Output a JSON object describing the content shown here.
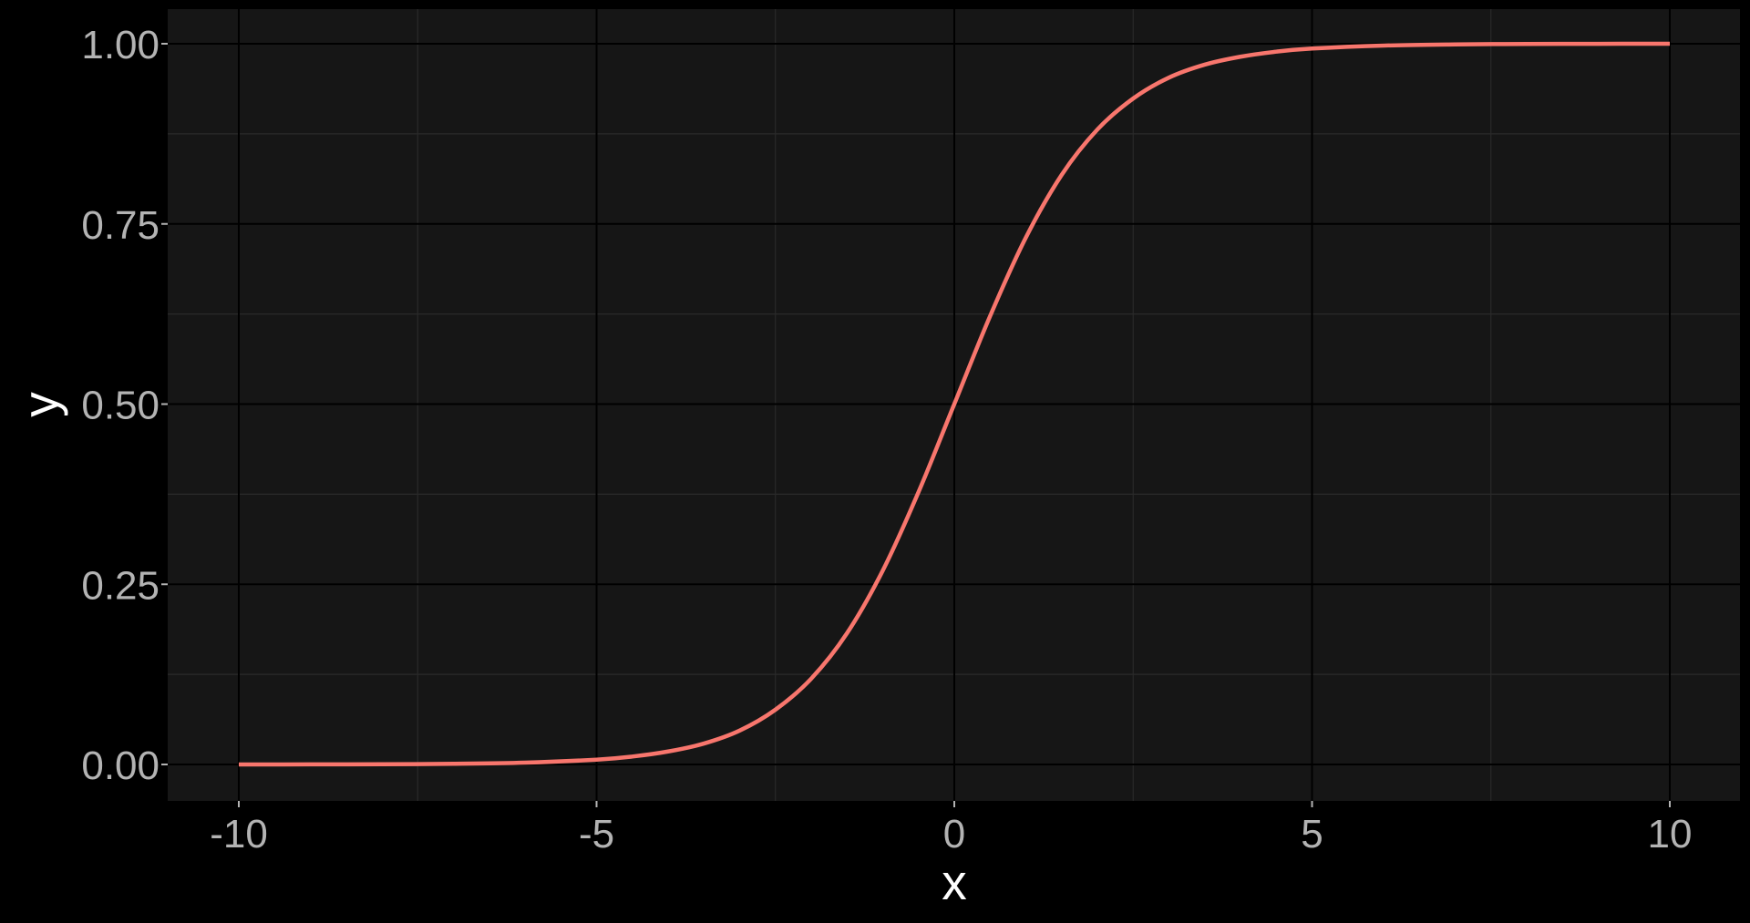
{
  "chart_data": {
    "type": "line",
    "title": "",
    "xlabel": "x",
    "ylabel": "y",
    "xlim": [
      -10,
      10
    ],
    "ylim": [
      0,
      1
    ],
    "x_ticks": [
      -10,
      -5,
      0,
      5,
      10
    ],
    "x_tick_labels": [
      "-10",
      "-5",
      "0",
      "5",
      "10"
    ],
    "y_ticks": [
      0,
      0.25,
      0.5,
      0.75,
      1
    ],
    "y_tick_labels": [
      "0.00",
      "0.25",
      "0.50",
      "0.75",
      "1.00"
    ],
    "x_minor_ticks": [
      -7.5,
      -2.5,
      2.5,
      7.5
    ],
    "y_minor_ticks": [
      0.125,
      0.375,
      0.625,
      0.875
    ],
    "grid": true,
    "legend": "none",
    "series": [
      {
        "x": [
          -10,
          -9,
          -8,
          -7,
          -6,
          -5,
          -4.5,
          -4,
          -3.5,
          -3,
          -2.5,
          -2,
          -1.5,
          -1,
          -0.5,
          0,
          0.5,
          1,
          1.5,
          2,
          2.5,
          3,
          3.5,
          4,
          4.5,
          5,
          6,
          7,
          8,
          9,
          10
        ],
        "y": [
          5e-05,
          0.0001,
          0.0003,
          0.0009,
          0.0025,
          0.0067,
          0.011,
          0.018,
          0.029,
          0.047,
          0.076,
          0.119,
          0.182,
          0.269,
          0.378,
          0.5,
          0.622,
          0.731,
          0.818,
          0.881,
          0.924,
          0.953,
          0.971,
          0.982,
          0.989,
          0.9933,
          0.9975,
          0.9991,
          0.9997,
          0.9999,
          0.99995
        ],
        "color": "#f8766d"
      }
    ]
  },
  "colors": {
    "background": "#000000",
    "panel": "#161616",
    "grid_major": "#000000",
    "grid_minor": "#2a2a2a",
    "tick_text": "#b3b3b3",
    "axis_title": "#ffffff",
    "line": "#f8766d"
  }
}
